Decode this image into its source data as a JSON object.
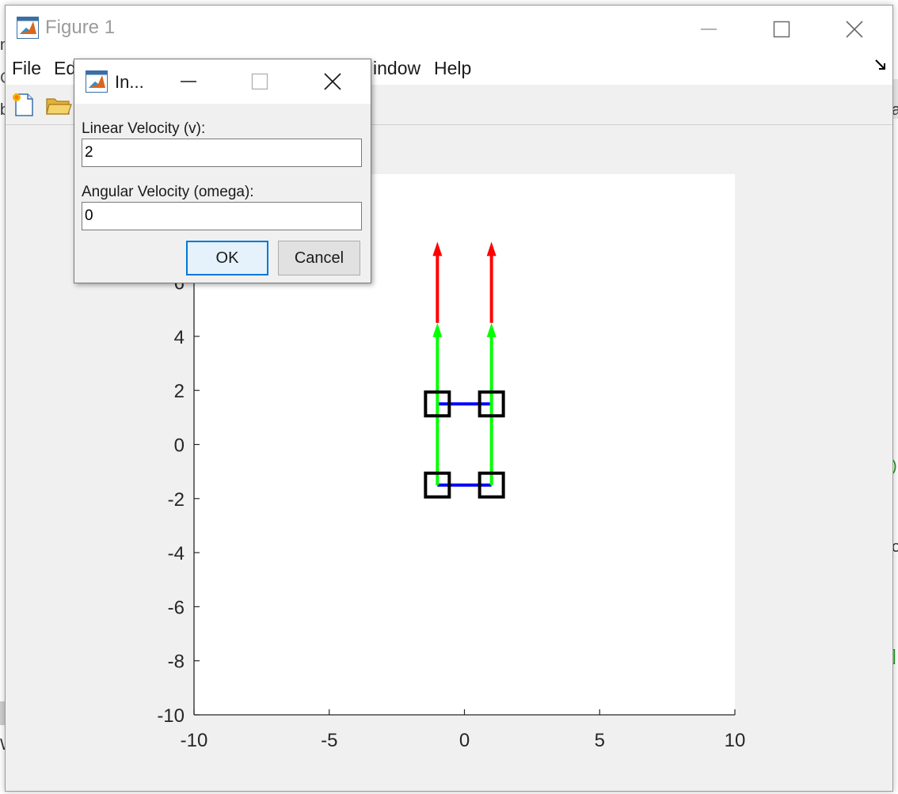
{
  "background": {
    "fragments": [
      "m",
      "C",
      "b",
      "W",
      ")",
      "o",
      "]",
      "a"
    ]
  },
  "figure_window": {
    "title": "Figure 1",
    "icons": [
      "matlab-logo-icon",
      "minimize-icon",
      "maximize-icon",
      "close-icon"
    ],
    "menu": [
      "File",
      "Ed",
      "indow",
      "Help"
    ],
    "dock_icon": "dock-arrow-icon",
    "toolbar_icons": [
      "new-figure-icon",
      "open-file-icon"
    ]
  },
  "dialog": {
    "title": "In...",
    "fields": [
      {
        "label": "Linear Velocity (v):",
        "value": "2"
      },
      {
        "label": "Angular Velocity (omega):",
        "value": "0"
      }
    ],
    "ok_label": "OK",
    "cancel_label": "Cancel"
  },
  "chart_data": {
    "type": "line",
    "xlim": [
      -10,
      10
    ],
    "ylim": [
      -10,
      10
    ],
    "x_ticks": [
      "-10",
      "-5",
      "0",
      "5",
      "10"
    ],
    "y_ticks": [
      "-10",
      "-8",
      "-6",
      "-4",
      "-2",
      "0",
      "2",
      "4",
      "6"
    ],
    "grid": false,
    "wheels": [
      [
        -1,
        1.5
      ],
      [
        1,
        1.5
      ],
      [
        -1,
        -1.5
      ],
      [
        1,
        -1.5
      ]
    ],
    "axles": [
      {
        "x": [
          -1,
          1
        ],
        "y": [
          1.5,
          1.5
        ]
      },
      {
        "x": [
          -1,
          1
        ],
        "y": [
          -1.5,
          -1.5
        ]
      }
    ],
    "arrows": [
      {
        "color": "#00ff00",
        "x": -1,
        "y0": -1.5,
        "y1": 4.5
      },
      {
        "color": "#00ff00",
        "x": 1,
        "y0": -1.5,
        "y1": 4.5
      },
      {
        "color": "#ff0000",
        "x": -1,
        "y0": 4.5,
        "y1": 7.5
      },
      {
        "color": "#ff0000",
        "x": 1,
        "y0": 4.5,
        "y1": 7.5
      }
    ],
    "colors": {
      "wheel": "#000000",
      "axle": "#0000ff"
    }
  }
}
